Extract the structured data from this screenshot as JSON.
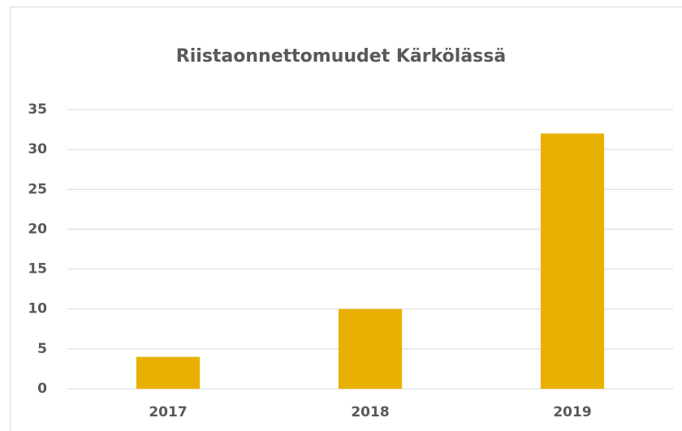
{
  "chart_data": {
    "type": "bar",
    "title": "Riistaonnettomuudet Kärkölässä",
    "categories": [
      "2017",
      "2018",
      "2019"
    ],
    "values": [
      4,
      10,
      32
    ],
    "color": "#e8b000",
    "ylim": [
      0,
      35
    ],
    "yticks": [
      0,
      5,
      10,
      15,
      20,
      25,
      30,
      35
    ],
    "grid": true
  }
}
